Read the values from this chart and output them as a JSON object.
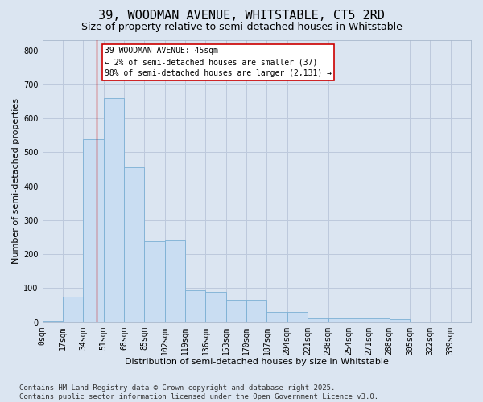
{
  "title_line1": "39, WOODMAN AVENUE, WHITSTABLE, CT5 2RD",
  "title_line2": "Size of property relative to semi-detached houses in Whitstable",
  "xlabel": "Distribution of semi-detached houses by size in Whitstable",
  "ylabel": "Number of semi-detached properties",
  "footnote": "Contains HM Land Registry data © Crown copyright and database right 2025.\nContains public sector information licensed under the Open Government Licence v3.0.",
  "bin_labels": [
    "0sqm",
    "17sqm",
    "34sqm",
    "51sqm",
    "68sqm",
    "85sqm",
    "102sqm",
    "119sqm",
    "136sqm",
    "153sqm",
    "170sqm",
    "187sqm",
    "204sqm",
    "221sqm",
    "238sqm",
    "254sqm",
    "271sqm",
    "288sqm",
    "305sqm",
    "322sqm",
    "339sqm"
  ],
  "bar_values": [
    5,
    75,
    540,
    660,
    455,
    238,
    240,
    93,
    90,
    65,
    65,
    30,
    30,
    10,
    10,
    10,
    10,
    8,
    0,
    0,
    0
  ],
  "bar_color": "#c9ddf2",
  "bar_edge_color": "#7bafd4",
  "grid_color": "#bdc9dc",
  "background_color": "#dbe5f1",
  "vline_x": 45,
  "annotation_text_line1": "39 WOODMAN AVENUE: 45sqm",
  "annotation_text_line2": "← 2% of semi-detached houses are smaller (37)",
  "annotation_text_line3": "98% of semi-detached houses are larger (2,131) →",
  "annotation_box_color": "#ffffff",
  "annotation_box_edge": "#cc0000",
  "vline_color": "#cc0000",
  "ylim": [
    0,
    830
  ],
  "yticks": [
    0,
    100,
    200,
    300,
    400,
    500,
    600,
    700,
    800
  ],
  "title_fontsize": 11,
  "subtitle_fontsize": 9,
  "axis_label_fontsize": 8,
  "tick_fontsize": 7,
  "annotation_fontsize": 7,
  "footnote_fontsize": 6.5
}
